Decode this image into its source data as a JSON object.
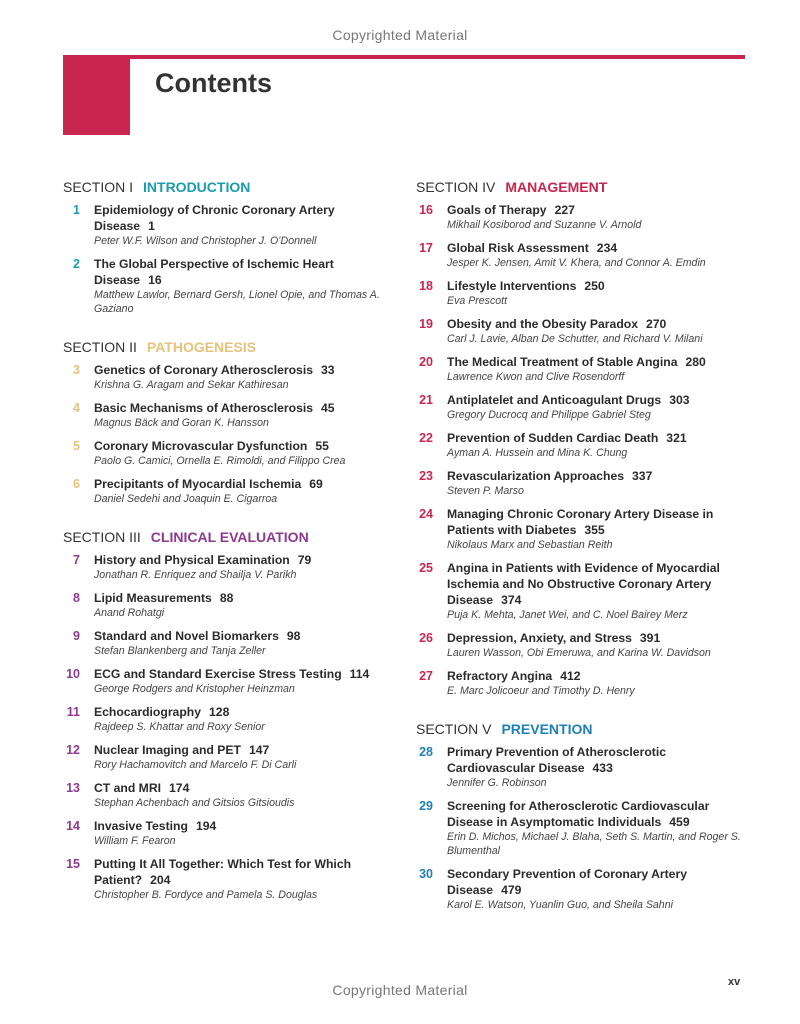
{
  "watermark_top": "Copyrighted Material",
  "watermark_bottom": "Copyrighted Material",
  "title": "Contents",
  "page_number": "xv",
  "accent_color": "#c8264f",
  "columns": [
    {
      "sections": [
        {
          "label": "SECTION I",
          "name": "INTRODUCTION",
          "color": "#1a9bb0",
          "chapters": [
            {
              "num": "1",
              "title": "Epidemiology of Chronic Coronary Artery Disease",
              "page": "1",
              "authors": "Peter W.F. Wilson and Christopher J. O’Donnell"
            },
            {
              "num": "2",
              "title": "The Global Perspective of Ischemic Heart Disease",
              "page": "16",
              "authors": "Matthew Lawlor, Bernard Gersh, Lionel Opie, and Thomas A. Gaziano"
            }
          ]
        },
        {
          "label": "SECTION II",
          "name": "PATHOGENESIS",
          "color": "#e6c27a",
          "chapters": [
            {
              "num": "3",
              "title": "Genetics of Coronary Atherosclerosis",
              "page": "33",
              "authors": "Krishna G. Aragam and Sekar Kathiresan"
            },
            {
              "num": "4",
              "title": "Basic Mechanisms of Atherosclerosis",
              "page": "45",
              "authors": "Magnus Bäck and Goran K. Hansson"
            },
            {
              "num": "5",
              "title": "Coronary Microvascular Dysfunction",
              "page": "55",
              "authors": "Paolo G. Camici, Ornella E. Rimoldi, and Filippo Crea"
            },
            {
              "num": "6",
              "title": "Precipitants of Myocardial Ischemia",
              "page": "69",
              "authors": "Daniel Sedehi and Joaquin E. Cigarroa"
            }
          ]
        },
        {
          "label": "SECTION III",
          "name": "CLINICAL EVALUATION",
          "color": "#8b3a8f",
          "chapters": [
            {
              "num": "7",
              "title": "History and Physical Examination",
              "page": "79",
              "authors": "Jonathan R. Enriquez and Shailja V. Parikh"
            },
            {
              "num": "8",
              "title": "Lipid Measurements",
              "page": "88",
              "authors": "Anand Rohatgi"
            },
            {
              "num": "9",
              "title": "Standard and Novel Biomarkers",
              "page": "98",
              "authors": "Stefan Blankenberg and Tanja Zeller"
            },
            {
              "num": "10",
              "title": "ECG and Standard Exercise Stress Testing",
              "page": "114",
              "authors": "George Rodgers and Kristopher Heinzman"
            },
            {
              "num": "11",
              "title": "Echocardiography",
              "page": "128",
              "authors": "Rajdeep S. Khattar and Roxy Senior"
            },
            {
              "num": "12",
              "title": "Nuclear Imaging and PET",
              "page": "147",
              "authors": "Rory Hachamovitch and Marcelo F. Di Carli"
            },
            {
              "num": "13",
              "title": "CT and MRI",
              "page": "174",
              "authors": "Stephan Achenbach and Gitsios Gitsioudis"
            },
            {
              "num": "14",
              "title": "Invasive Testing",
              "page": "194",
              "authors": "William F. Fearon"
            },
            {
              "num": "15",
              "title": "Putting It All Together: Which Test for Which Patient?",
              "page": "204",
              "authors": "Christopher B. Fordyce and Pamela S. Douglas"
            }
          ]
        }
      ]
    },
    {
      "sections": [
        {
          "label": "SECTION IV",
          "name": "MANAGEMENT",
          "color": "#c8264f",
          "chapters": [
            {
              "num": "16",
              "title": "Goals of Therapy",
              "page": "227",
              "authors": "Mikhail Kosiborod and Suzanne V. Arnold"
            },
            {
              "num": "17",
              "title": "Global Risk Assessment",
              "page": "234",
              "authors": "Jesper K. Jensen, Amit V. Khera, and Connor A. Emdin"
            },
            {
              "num": "18",
              "title": "Lifestyle Interventions",
              "page": "250",
              "authors": "Eva Prescott"
            },
            {
              "num": "19",
              "title": "Obesity and the Obesity Paradox",
              "page": "270",
              "authors": "Carl J. Lavie, Alban De Schutter, and Richard V. Milani"
            },
            {
              "num": "20",
              "title": "The Medical Treatment of Stable Angina",
              "page": "280",
              "authors": "Lawrence Kwon and Clive Rosendorff"
            },
            {
              "num": "21",
              "title": "Antiplatelet and Anticoagulant Drugs",
              "page": "303",
              "authors": "Gregory Ducrocq and Philippe Gabriel Steg"
            },
            {
              "num": "22",
              "title": "Prevention of Sudden Cardiac Death",
              "page": "321",
              "authors": "Ayman A. Hussein and Mina K. Chung"
            },
            {
              "num": "23",
              "title": "Revascularization Approaches",
              "page": "337",
              "authors": "Steven P. Marso"
            },
            {
              "num": "24",
              "title": "Managing Chronic Coronary Artery Disease in Patients with Diabetes",
              "page": "355",
              "authors": "Nikolaus Marx and Sebastian Reith"
            },
            {
              "num": "25",
              "title": "Angina in Patients with Evidence of Myocardial Ischemia and No Obstructive Coronary Artery Disease",
              "page": "374",
              "authors": "Puja K. Mehta, Janet Wei, and C. Noel Bairey Merz"
            },
            {
              "num": "26",
              "title": "Depression, Anxiety, and Stress",
              "page": "391",
              "authors": "Lauren Wasson, Obi Emeruwa, and Karina W. Davidson"
            },
            {
              "num": "27",
              "title": "Refractory Angina",
              "page": "412",
              "authors": "E. Marc Jolicoeur and Timothy D. Henry"
            }
          ]
        },
        {
          "label": "SECTION V",
          "name": "PREVENTION",
          "color": "#1f7fb8",
          "chapters": [
            {
              "num": "28",
              "title": "Primary Prevention of Atherosclerotic Cardiovascular Disease",
              "page": "433",
              "authors": "Jennifer G. Robinson"
            },
            {
              "num": "29",
              "title": "Screening for Atherosclerotic Cardiovascular Disease in Asymptomatic Individuals",
              "page": "459",
              "authors": "Erin D. Michos, Michael J. Blaha, Seth S. Martin, and Roger S. Blumenthal"
            },
            {
              "num": "30",
              "title": "Secondary Prevention of Coronary Artery Disease",
              "page": "479",
              "authors": "Karol E. Watson, Yuanlin Guo, and Sheila Sahni"
            }
          ]
        }
      ]
    }
  ]
}
